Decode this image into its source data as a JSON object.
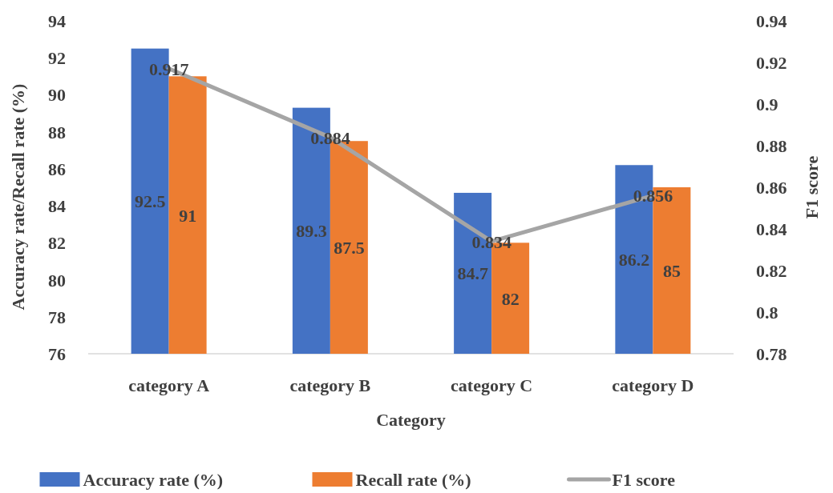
{
  "chart_data": {
    "type": "bar",
    "xlabel": "Category",
    "ylabel": "Accuracy rate/Recall rate (%)",
    "y2label": "F1 score",
    "categories": [
      "category A",
      "category B",
      "category C",
      "category D"
    ],
    "series": [
      {
        "name": "Accuracy rate (%)",
        "color": "#4472c4",
        "values": [
          92.5,
          89.3,
          84.7,
          86.2
        ]
      },
      {
        "name": "Recall rate (%)",
        "color": "#ed7d31",
        "values": [
          91,
          87.5,
          82,
          85
        ]
      },
      {
        "name": "F1 score",
        "type": "line",
        "axis": "y2",
        "color": "#a5a5a5",
        "values": [
          0.917,
          0.884,
          0.834,
          0.856
        ]
      }
    ],
    "ylim": [
      76,
      94
    ],
    "yticks": [
      76,
      78,
      80,
      82,
      84,
      86,
      88,
      90,
      92,
      94
    ],
    "y2lim": [
      0.78,
      0.94
    ],
    "y2ticks": [
      0.78,
      0.8,
      0.82,
      0.84,
      0.86,
      0.88,
      0.9,
      0.92,
      0.94
    ],
    "data_labels": true,
    "legend": "bottom",
    "marker": "none"
  }
}
